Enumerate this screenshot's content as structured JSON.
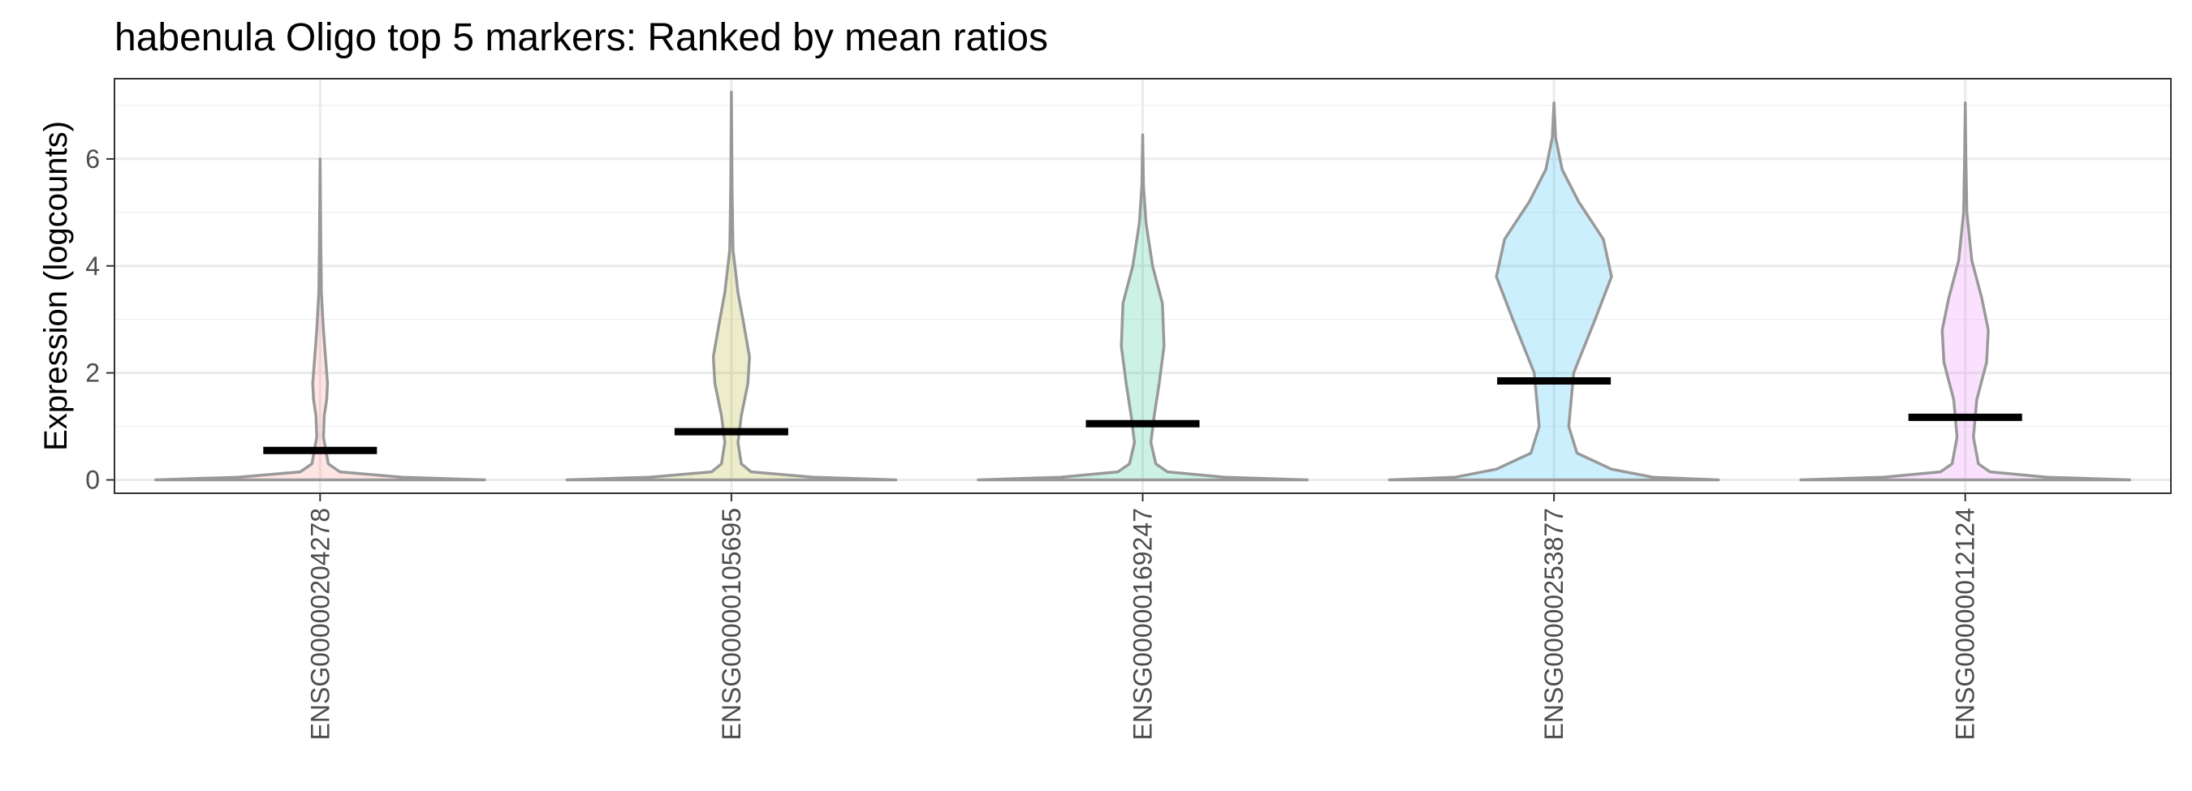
{
  "chart_data": {
    "type": "violin",
    "title": "habenula Oligo top 5 markers: Ranked by mean ratios",
    "xlabel": "",
    "ylabel": "Expression (logcounts)",
    "ylim": [
      -0.25,
      7.5
    ],
    "yticks": [
      0,
      2,
      4,
      6
    ],
    "grid": true,
    "categories": [
      "ENSG00000204278",
      "ENSG00000105695",
      "ENSG00000169247",
      "ENSG00000253877",
      "ENSG00000012124"
    ],
    "colors": [
      "#F8766D",
      "#A3A500",
      "#00BF7D",
      "#00B0F6",
      "#E76BF3"
    ],
    "means": [
      0.55,
      0.9,
      1.05,
      1.85,
      1.17
    ],
    "maxima": [
      6.0,
      7.25,
      6.45,
      7.05,
      7.05
    ],
    "violin_profiles": [
      [
        [
          0,
          1.0
        ],
        [
          0.05,
          0.5
        ],
        [
          0.15,
          0.12
        ],
        [
          0.3,
          0.05
        ],
        [
          0.8,
          0.02
        ],
        [
          1.2,
          0.025
        ],
        [
          1.5,
          0.04
        ],
        [
          1.8,
          0.045
        ],
        [
          2.2,
          0.035
        ],
        [
          2.8,
          0.02
        ],
        [
          3.5,
          0.008
        ],
        [
          4.5,
          0.004
        ],
        [
          6.0,
          0.0
        ]
      ],
      [
        [
          0,
          1.0
        ],
        [
          0.05,
          0.5
        ],
        [
          0.15,
          0.12
        ],
        [
          0.3,
          0.06
        ],
        [
          0.7,
          0.04
        ],
        [
          1.2,
          0.06
        ],
        [
          1.8,
          0.1
        ],
        [
          2.3,
          0.11
        ],
        [
          3.0,
          0.07
        ],
        [
          3.5,
          0.04
        ],
        [
          4.3,
          0.01
        ],
        [
          5.5,
          0.004
        ],
        [
          7.25,
          0.0
        ]
      ],
      [
        [
          0,
          1.0
        ],
        [
          0.05,
          0.5
        ],
        [
          0.15,
          0.15
        ],
        [
          0.3,
          0.08
        ],
        [
          0.7,
          0.05
        ],
        [
          1.2,
          0.07
        ],
        [
          1.8,
          0.1
        ],
        [
          2.5,
          0.13
        ],
        [
          3.3,
          0.12
        ],
        [
          4.0,
          0.06
        ],
        [
          4.8,
          0.02
        ],
        [
          5.5,
          0.005
        ],
        [
          6.45,
          0.0
        ]
      ],
      [
        [
          0,
          1.0
        ],
        [
          0.05,
          0.6
        ],
        [
          0.2,
          0.35
        ],
        [
          0.5,
          0.14
        ],
        [
          1.0,
          0.09
        ],
        [
          2.0,
          0.12
        ],
        [
          3.0,
          0.25
        ],
        [
          3.8,
          0.35
        ],
        [
          4.5,
          0.3
        ],
        [
          5.2,
          0.15
        ],
        [
          5.8,
          0.05
        ],
        [
          6.4,
          0.01
        ],
        [
          7.05,
          0.0
        ]
      ],
      [
        [
          0,
          1.0
        ],
        [
          0.05,
          0.5
        ],
        [
          0.15,
          0.15
        ],
        [
          0.3,
          0.08
        ],
        [
          0.8,
          0.05
        ],
        [
          1.5,
          0.07
        ],
        [
          2.2,
          0.13
        ],
        [
          2.8,
          0.14
        ],
        [
          3.4,
          0.1
        ],
        [
          4.1,
          0.04
        ],
        [
          5.0,
          0.01
        ],
        [
          6.0,
          0.004
        ],
        [
          7.05,
          0.0
        ]
      ]
    ]
  }
}
